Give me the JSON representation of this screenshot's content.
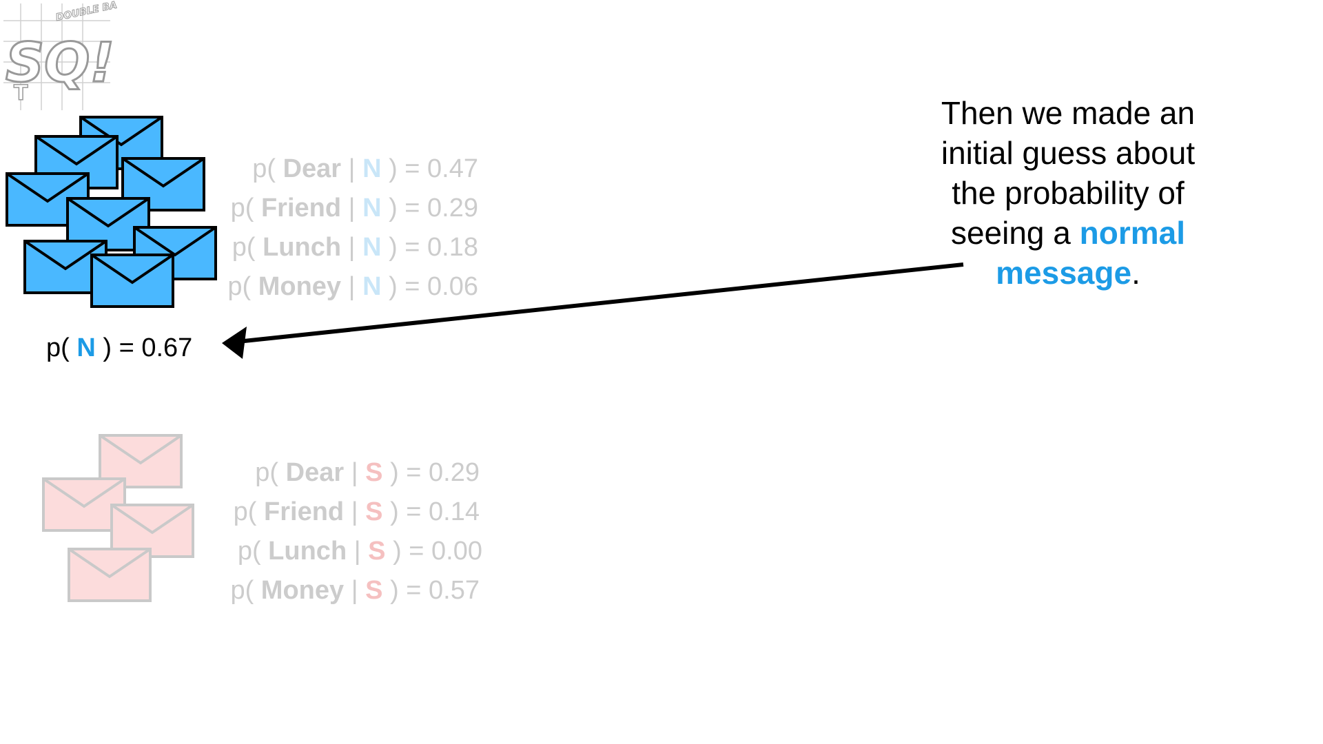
{
  "logo": {
    "letters_main": "SQ!",
    "small_text": "DOUBLE BAM!!",
    "side_text": "T"
  },
  "normal_group": {
    "prior": {
      "prefix": "p(",
      "label": "N",
      "suffix": ") = 0.67"
    },
    "likelihoods": [
      {
        "prefix": "p(",
        "word": "Dear",
        "sep": "|",
        "label": "N",
        "suffix": ") = 0.47"
      },
      {
        "prefix": "p(",
        "word": "Friend",
        "sep": "|",
        "label": "N",
        "suffix": ") = 0.29"
      },
      {
        "prefix": "p(",
        "word": "Lunch",
        "sep": "|",
        "label": "N",
        "suffix": ") = 0.18"
      },
      {
        "prefix": "p(",
        "word": "Money",
        "sep": "|",
        "label": "N",
        "suffix": ") = 0.06"
      }
    ]
  },
  "spam_group": {
    "likelihoods": [
      {
        "prefix": "p(",
        "word": "Dear",
        "sep": "|",
        "label": "S",
        "suffix": ") = 0.29"
      },
      {
        "prefix": "p(",
        "word": "Friend",
        "sep": "|",
        "label": "S",
        "suffix": ") = 0.14"
      },
      {
        "prefix": "p(",
        "word": "Lunch",
        "sep": "|",
        "label": "S",
        "suffix": ") = 0.00"
      },
      {
        "prefix": "p(",
        "word": "Money",
        "sep": "|",
        "label": "S",
        "suffix": ") = 0.57"
      }
    ]
  },
  "caption": {
    "line1": "Then we made an",
    "line2": "initial guess about",
    "line3": "the probability of",
    "line4_prefix": "seeing a",
    "highlight_1": "normal",
    "highlight_2": "message",
    "end": "."
  },
  "colors": {
    "normal_blue": "#1c9be6",
    "envelope_blue": "#4ab8ff",
    "envelope_pink": "#fcdcdc",
    "faded_text": "#cccccc"
  }
}
